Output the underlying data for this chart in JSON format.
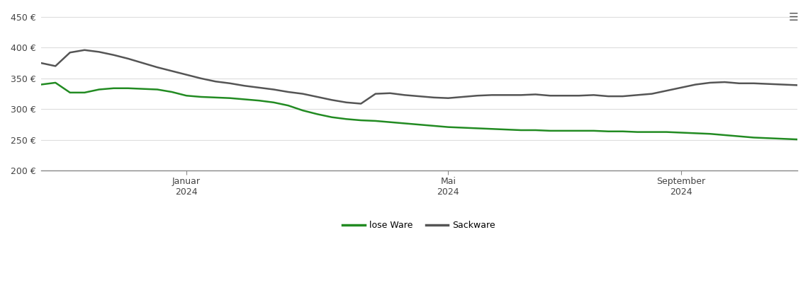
{
  "background_color": "#ffffff",
  "plot_bg_color": "#ffffff",
  "grid_color": "#dddddd",
  "ylim": [
    200,
    460
  ],
  "yticks": [
    200,
    250,
    300,
    350,
    400,
    450
  ],
  "legend_labels": [
    "lose Ware",
    "Sackware"
  ],
  "legend_colors": [
    "#228B22",
    "#555555"
  ],
  "line_lose_ware": {
    "color": "#228B22",
    "linewidth": 1.8,
    "x": [
      0,
      1,
      2,
      3,
      4,
      5,
      6,
      7,
      8,
      9,
      10,
      11,
      12,
      13,
      14,
      15,
      16,
      17,
      18,
      19,
      20,
      21,
      22,
      23,
      24,
      25,
      26,
      27,
      28,
      29,
      30,
      31,
      32,
      33,
      34,
      35,
      36,
      37,
      38,
      39,
      40,
      41,
      42,
      43,
      44,
      45,
      46,
      47,
      48,
      49,
      50,
      51,
      52
    ],
    "y": [
      340,
      343,
      327,
      327,
      332,
      334,
      334,
      333,
      332,
      328,
      322,
      320,
      319,
      318,
      316,
      314,
      311,
      306,
      298,
      292,
      287,
      284,
      282,
      281,
      279,
      277,
      275,
      273,
      271,
      270,
      269,
      268,
      267,
      266,
      266,
      265,
      265,
      265,
      265,
      264,
      264,
      263,
      263,
      263,
      262,
      261,
      260,
      258,
      256,
      254,
      253,
      252,
      251
    ]
  },
  "line_sackware": {
    "color": "#555555",
    "linewidth": 1.8,
    "x": [
      0,
      1,
      2,
      3,
      4,
      5,
      6,
      7,
      8,
      9,
      10,
      11,
      12,
      13,
      14,
      15,
      16,
      17,
      18,
      19,
      20,
      21,
      22,
      23,
      24,
      25,
      26,
      27,
      28,
      29,
      30,
      31,
      32,
      33,
      34,
      35,
      36,
      37,
      38,
      39,
      40,
      41,
      42,
      43,
      44,
      45,
      46,
      47,
      48,
      49,
      50,
      51,
      52
    ],
    "y": [
      375,
      370,
      392,
      396,
      393,
      388,
      382,
      375,
      368,
      362,
      356,
      350,
      345,
      342,
      338,
      335,
      332,
      328,
      325,
      320,
      315,
      311,
      309,
      325,
      326,
      323,
      321,
      319,
      318,
      320,
      322,
      323,
      323,
      323,
      324,
      322,
      322,
      322,
      323,
      321,
      321,
      323,
      325,
      330,
      335,
      340,
      343,
      344,
      342,
      342,
      341,
      340,
      339
    ]
  },
  "x_tick_positions": [
    10,
    28,
    44
  ],
  "x_tick_labels": [
    "Januar\n2024",
    "Mai\n2024",
    "September\n2024"
  ],
  "xlim": [
    0,
    52
  ]
}
